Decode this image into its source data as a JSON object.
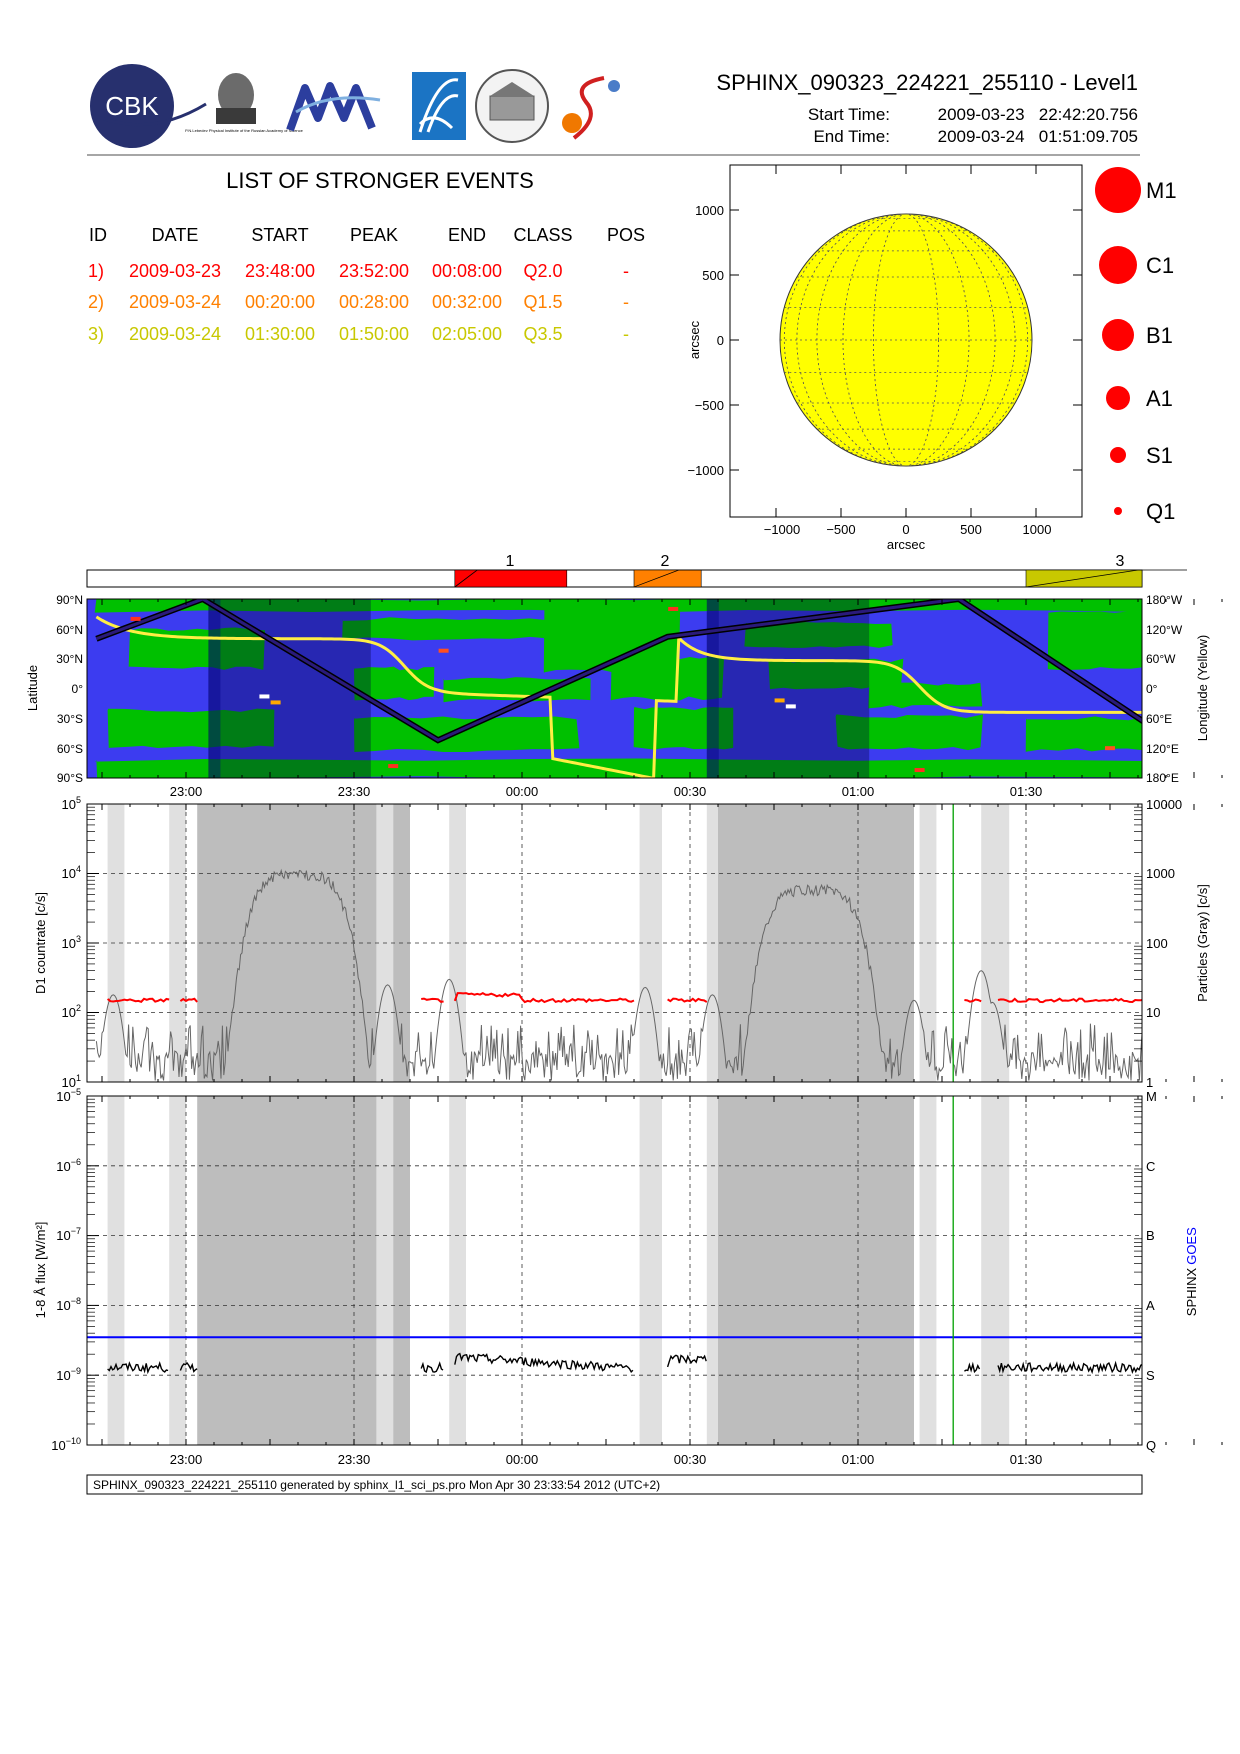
{
  "header": {
    "title": "SPHINX_090323_224221_255110 - Level1",
    "start_label": "Start Time:",
    "start_value": "2009-03-23   22:42:20.756",
    "end_label": "End Time:",
    "end_value": "2009-03-24   01:51:09.705"
  },
  "logos": {
    "cbk_text": "CBK",
    "lebedev_caption": "P.N.Lebedev Physical Institute of the Russian Academy of Science"
  },
  "events_table": {
    "title": "LIST OF STRONGER EVENTS",
    "columns": [
      "ID",
      "DATE",
      "START",
      "PEAK",
      "END",
      "CLASS",
      "POS"
    ],
    "rows": [
      {
        "id": "1)",
        "date": "2009-03-23",
        "start": "23:48:00",
        "peak": "23:52:00",
        "end": "00:08:00",
        "cls": "Q2.0",
        "pos": "-",
        "color": "#ff0000"
      },
      {
        "id": "2)",
        "date": "2009-03-24",
        "start": "00:20:00",
        "peak": "00:28:00",
        "end": "00:32:00",
        "cls": "Q1.5",
        "pos": "-",
        "color": "#ff8000"
      },
      {
        "id": "3)",
        "date": "2009-03-24",
        "start": "01:30:00",
        "peak": "01:50:00",
        "end": "02:05:00",
        "cls": "Q3.5",
        "pos": "-",
        "color": "#c8c800"
      }
    ]
  },
  "class_legend": [
    "M1",
    "C1",
    "B1",
    "A1",
    "S1",
    "Q1"
  ],
  "colors": {
    "sun": "#ffff00",
    "land": "#00c000",
    "ocean": "#3c3cf0",
    "counts": "#666666",
    "particles": "#ff0000",
    "goes": "#0000ff",
    "shade_light": "#e0e0e0",
    "shade_dark": "#bdbdbd",
    "marker": "#00a000"
  },
  "chart_data": [
    {
      "type": "scatter",
      "name": "solar-disk",
      "xlabel": "arcsec",
      "ylabel": "arcsec",
      "xlim": [
        -1400,
        1350
      ],
      "ylim": [
        -1370,
        1370
      ],
      "x_ticks": [
        "−1000",
        "−500",
        "0",
        "500",
        "1000"
      ],
      "y_ticks": [
        "1000",
        "500",
        "0",
        "−500",
        "−1000"
      ],
      "disk_radius": 970,
      "events_plotted": 0
    },
    {
      "type": "bar",
      "name": "event-timeline",
      "x_range": [
        "22:42",
        "01:51"
      ],
      "events": [
        {
          "label": "1",
          "start": "23:48",
          "peak": "23:52",
          "end": "00:08",
          "color": "#ff0000"
        },
        {
          "label": "2",
          "start": "00:20",
          "peak": "00:28",
          "end": "00:32",
          "color": "#ff8000"
        },
        {
          "label": "3",
          "start": "01:30",
          "peak": "01:50",
          "end": "02:05",
          "color": "#c8c800"
        }
      ]
    },
    {
      "type": "line",
      "name": "orbit-map",
      "ylabel": "Latitude",
      "y2label": "Longitude (Yellow)",
      "y_ticks": [
        "90°S",
        "60°S",
        "30°S",
        "0°",
        "30°N",
        "60°N",
        "90°N"
      ],
      "y2_ticks": [
        "180°E",
        "120°E",
        "60°E",
        "0°",
        "60°W",
        "120°W",
        "180°W"
      ],
      "x_ticks": [
        "23:00",
        "23:30",
        "00:00",
        "00:30",
        "01:00",
        "01:30"
      ],
      "latitude_track": {
        "t_min": [
          -16,
          3,
          45,
          86,
          138,
          176,
          190
        ],
        "lat_deg": [
          50,
          90,
          -52,
          52,
          90,
          -52,
          18
        ]
      },
      "night_intervals_min": [
        [
          4,
          33
        ],
        [
          93,
          122
        ]
      ]
    },
    {
      "type": "line",
      "name": "d1-countrate",
      "ylabel": "D1 countrate [c/s]",
      "y2label": "Particles (Gray) [c/s]",
      "yscale": "log",
      "ylim": [
        10,
        100000
      ],
      "y_ticks": [
        "10^1",
        "10^2",
        "10^3",
        "10^4",
        "10^5"
      ],
      "y2_ticks": [
        "1",
        "10",
        "100",
        "1000",
        "10000"
      ],
      "x_ticks": [
        "23:00",
        "23:30",
        "00:00",
        "00:30",
        "01:00",
        "01:30"
      ],
      "gap_light_min": [
        [
          -14,
          -11
        ],
        [
          -3,
          0
        ],
        [
          34,
          37
        ],
        [
          47,
          50
        ],
        [
          81,
          85
        ],
        [
          93,
          96
        ],
        [
          131,
          134
        ],
        [
          142,
          147
        ]
      ],
      "gap_dark_min": [
        [
          2,
          34
        ],
        [
          37,
          40
        ],
        [
          95,
          130
        ]
      ],
      "particle_peaks": [
        {
          "t": "23:20",
          "value": 10000
        },
        {
          "t": "00:52",
          "value": 6000
        }
      ],
      "count_level": 150,
      "marker_time": "01:17"
    },
    {
      "type": "line",
      "name": "flux-1-8A",
      "ylabel": "1-8 Å flux [W/m²]",
      "y2label_sphinx": "SPHINX",
      "y2label_goes": "GOES",
      "yscale": "log",
      "ylim": [
        1e-10,
        1e-05
      ],
      "y_ticks": [
        "10^-10",
        "10^-9",
        "10^-8",
        "10^-7",
        "10^-6",
        "10^-5"
      ],
      "class_ticks": [
        "Q",
        "S",
        "A",
        "B",
        "C",
        "M"
      ],
      "x_ticks": [
        "23:00",
        "23:30",
        "00:00",
        "00:30",
        "01:00",
        "01:30"
      ],
      "goes_level": 3.5e-09,
      "sphinx_level": 1.3e-09,
      "marker_time": "01:17"
    }
  ],
  "footer": "SPHINX_090323_224221_255110 generated by sphinx_l1_sci_ps.pro Mon Apr 30 23:33:54 2012 (UTC+2)"
}
